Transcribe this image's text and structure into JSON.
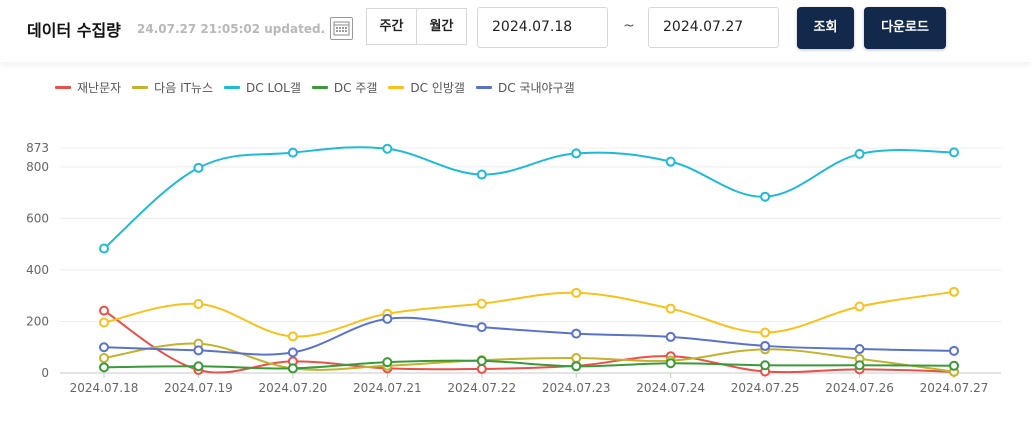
{
  "header": {
    "title": "데이터 수집량",
    "updated": "24.07.27 21:05:02 updated.",
    "calendar_icon": "calendar-icon",
    "period_tabs": [
      {
        "label": "주간"
      },
      {
        "label": "월간"
      }
    ],
    "start_date": "2024.07.18",
    "separator": "~",
    "end_date": "2024.07.27",
    "search_label": "조회",
    "download_label": "다운로드"
  },
  "chart_data": {
    "type": "line",
    "title": "",
    "xlabel": "",
    "ylabel": "",
    "categories": [
      "2024.07.18",
      "2024.07.19",
      "2024.07.20",
      "2024.07.21",
      "2024.07.22",
      "2024.07.23",
      "2024.07.24",
      "2024.07.25",
      "2024.07.26",
      "2024.07.27"
    ],
    "ylim": [
      0,
      873
    ],
    "yticks": [
      0,
      200,
      400,
      600,
      800,
      873
    ],
    "grid": true,
    "legend_position": "top-left",
    "series": [
      {
        "name": "재난문자",
        "color": "#e8504a",
        "values": [
          242,
          12,
          45,
          18,
          16,
          28,
          65,
          6,
          14,
          5
        ]
      },
      {
        "name": "다음 IT뉴스",
        "color": "#c2b22c",
        "values": [
          58,
          114,
          18,
          28,
          50,
          58,
          48,
          92,
          55,
          5
        ]
      },
      {
        "name": "DC LOL갤",
        "color": "#1fbad6",
        "values": [
          483,
          796,
          855,
          870,
          770,
          852,
          820,
          684,
          850,
          856
        ]
      },
      {
        "name": "DC 주갤",
        "color": "#3a9a3a",
        "values": [
          22,
          26,
          18,
          42,
          47,
          26,
          38,
          30,
          30,
          28
        ]
      },
      {
        "name": "DC 인방갤",
        "color": "#f7c21e",
        "values": [
          196,
          268,
          142,
          230,
          269,
          311,
          250,
          157,
          258,
          315
        ]
      },
      {
        "name": "DC 국내야구갤",
        "color": "#5a73c9",
        "values": [
          100,
          88,
          80,
          210,
          178,
          153,
          140,
          105,
          93,
          86
        ]
      }
    ]
  }
}
